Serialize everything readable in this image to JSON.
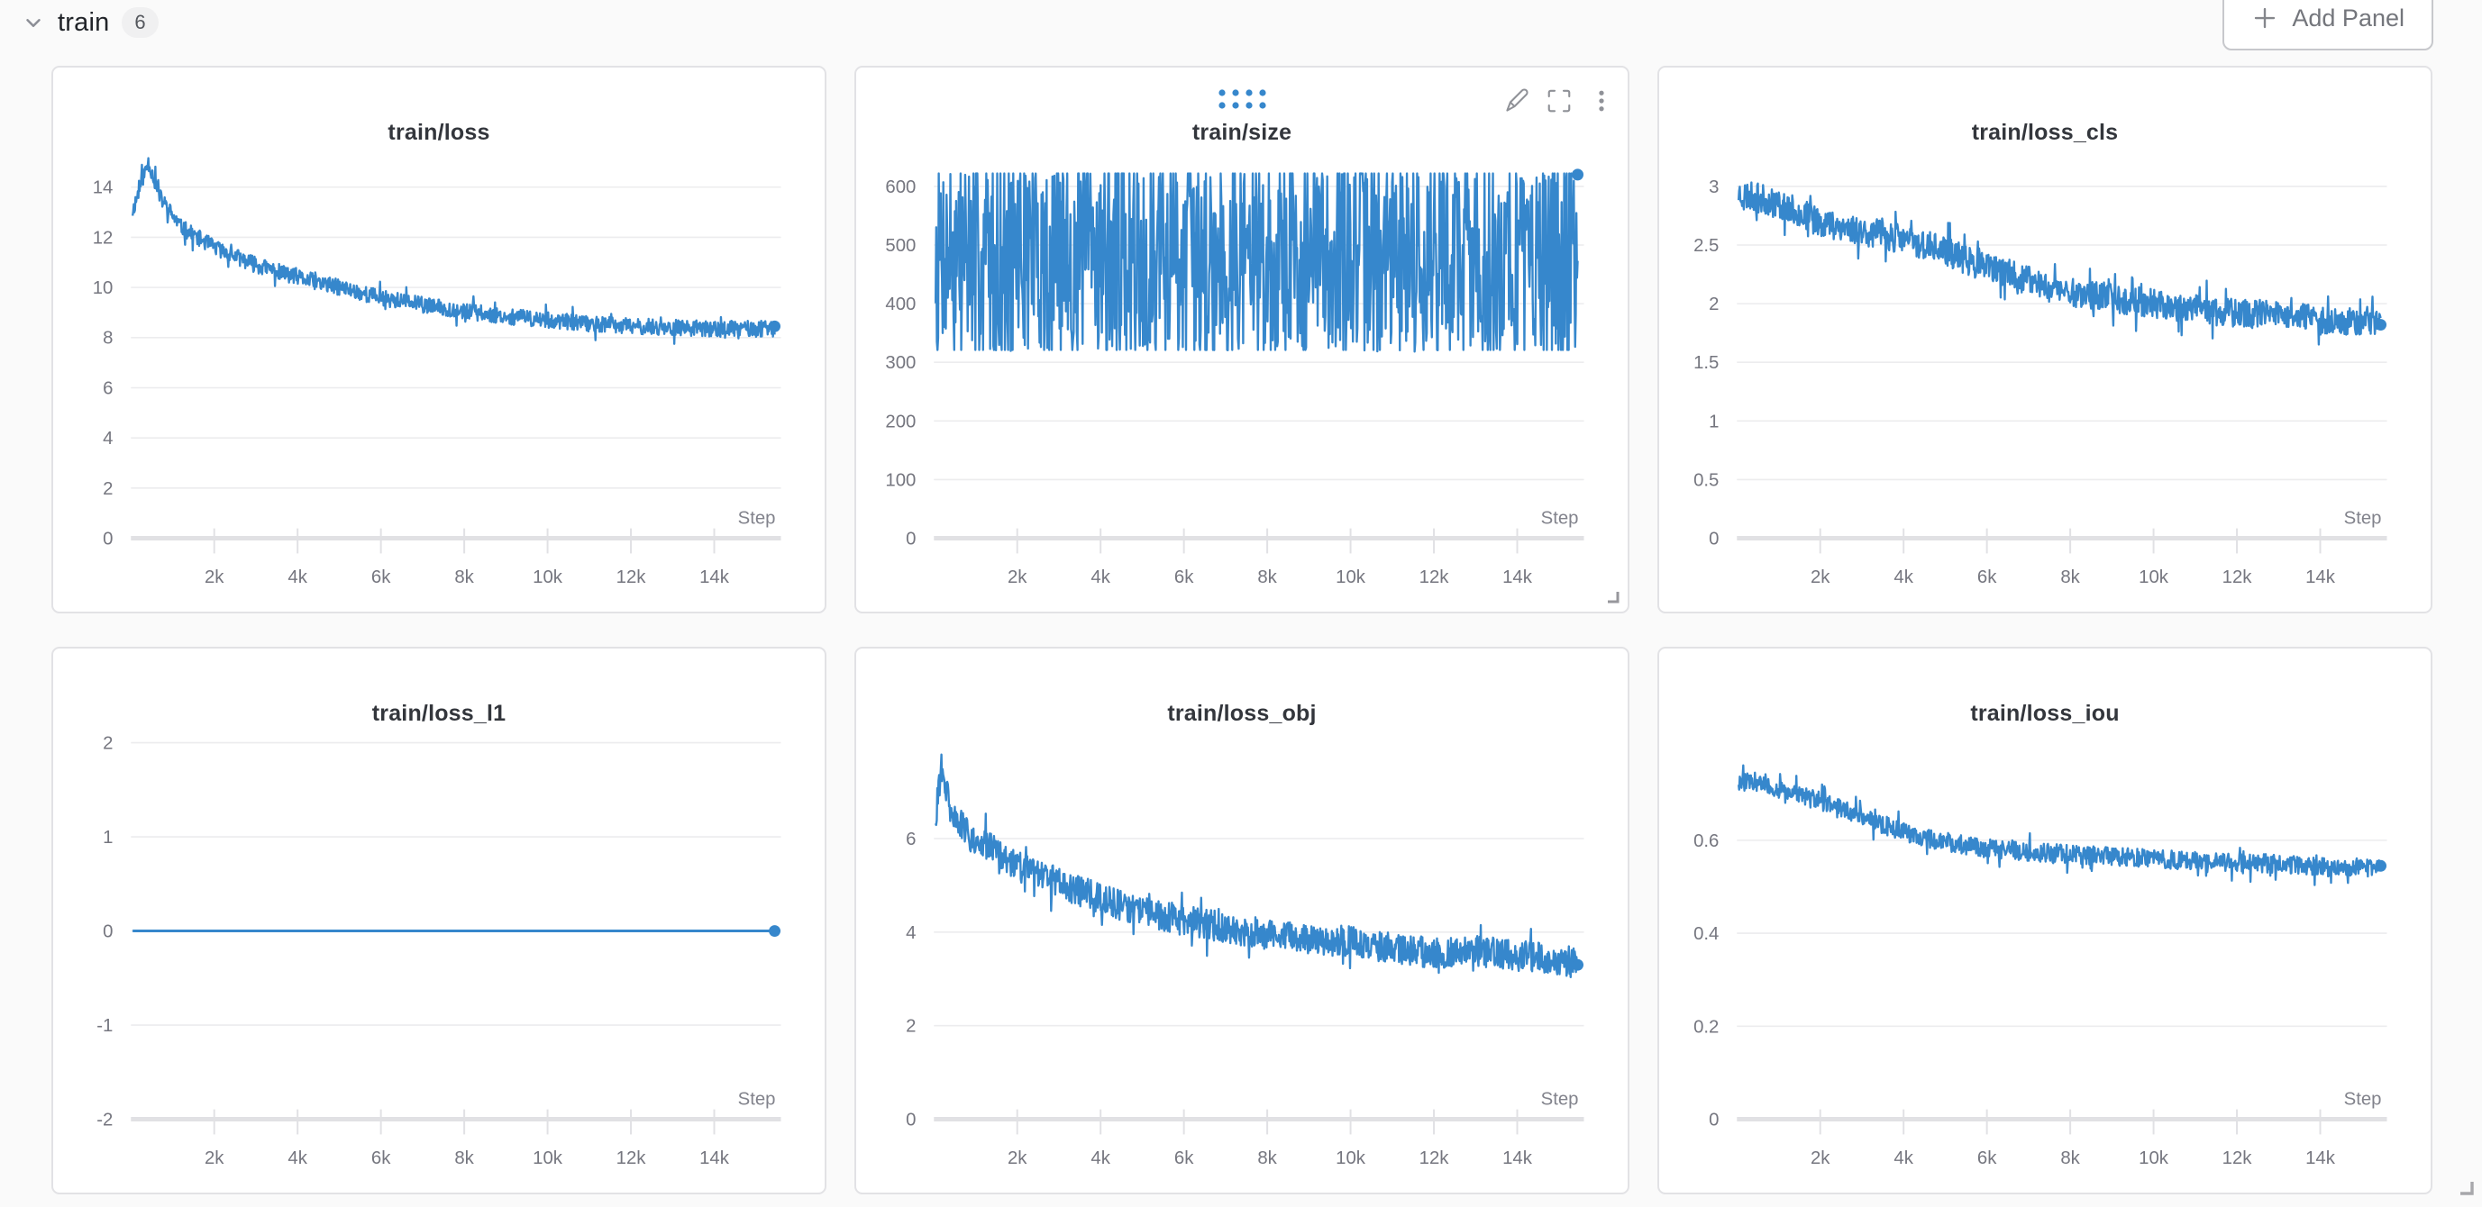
{
  "page": {
    "background": "#fafafa",
    "accent_blue": "#3687cc"
  },
  "header": {
    "section_title": "train",
    "panel_count": "6",
    "add_panel_label": "Add Panel"
  },
  "axis": {
    "step_label": "Step",
    "xlim": [
      0,
      15600
    ],
    "x_ticks": [
      {
        "label": "2k",
        "value": 2000
      },
      {
        "label": "4k",
        "value": 4000
      },
      {
        "label": "6k",
        "value": 6000
      },
      {
        "label": "8k",
        "value": 8000
      },
      {
        "label": "10k",
        "value": 10000
      },
      {
        "label": "12k",
        "value": 12000
      },
      {
        "label": "14k",
        "value": 14000
      }
    ]
  },
  "style": {
    "line_color": "#3687cc",
    "grid_color": "#ececee",
    "axis_color": "#e1e1e4",
    "tick_label_color": "#75767f",
    "step_label_color": "#82838c",
    "title_color": "#33363c",
    "icon_color": "#8f9197"
  },
  "panels": [
    {
      "chart_index": 0,
      "hovered": false
    },
    {
      "chart_index": 1,
      "hovered": true
    },
    {
      "chart_index": 2,
      "hovered": false
    },
    {
      "chart_index": 3,
      "hovered": false
    },
    {
      "chart_index": 4,
      "hovered": false
    },
    {
      "chart_index": 5,
      "hovered": false
    }
  ],
  "chart_data": [
    {
      "key": "train_loss",
      "title": "train/loss",
      "type": "noisy-line",
      "xlabel": "Step",
      "seed": 11,
      "grid": true,
      "legend": "none",
      "ylim": [
        0,
        15.2
      ],
      "yticks": [
        {
          "label": "0",
          "value": 0
        },
        {
          "label": "2",
          "value": 2
        },
        {
          "label": "4",
          "value": 4
        },
        {
          "label": "6",
          "value": 6
        },
        {
          "label": "8",
          "value": 8
        },
        {
          "label": "10",
          "value": 10
        },
        {
          "label": "12",
          "value": 12
        },
        {
          "label": "14",
          "value": 14
        }
      ],
      "trend": [
        [
          0,
          12.8
        ],
        [
          250,
          14.2
        ],
        [
          420,
          15.0
        ],
        [
          700,
          13.6
        ],
        [
          1200,
          12.4
        ],
        [
          2000,
          11.6
        ],
        [
          3000,
          10.9
        ],
        [
          4000,
          10.4
        ],
        [
          5000,
          10.0
        ],
        [
          6000,
          9.6
        ],
        [
          7000,
          9.3
        ],
        [
          8000,
          9.05
        ],
        [
          9000,
          8.85
        ],
        [
          10000,
          8.7
        ],
        [
          11000,
          8.55
        ],
        [
          12000,
          8.45
        ],
        [
          13000,
          8.4
        ],
        [
          14000,
          8.35
        ],
        [
          15450,
          8.35
        ]
      ],
      "noise": 0.32,
      "end_dot": [
        15450,
        8.45
      ]
    },
    {
      "key": "train_size",
      "title": "train/size",
      "type": "random-band",
      "xlabel": "Step",
      "seed": 7,
      "grid": true,
      "legend": "none",
      "ylim": [
        0,
        650
      ],
      "yticks": [
        {
          "label": "0",
          "value": 0
        },
        {
          "label": "100",
          "value": 100
        },
        {
          "label": "200",
          "value": 200
        },
        {
          "label": "300",
          "value": 300
        },
        {
          "label": "400",
          "value": 400
        },
        {
          "label": "500",
          "value": 500
        },
        {
          "label": "600",
          "value": 600
        }
      ],
      "band": [
        318,
        622
      ],
      "end_dot": [
        15450,
        620
      ]
    },
    {
      "key": "train_loss_cls",
      "title": "train/loss_cls",
      "type": "noisy-line",
      "xlabel": "Step",
      "seed": 23,
      "grid": true,
      "legend": "none",
      "ylim": [
        0,
        3.25
      ],
      "yticks": [
        {
          "label": "0",
          "value": 0
        },
        {
          "label": "0.5",
          "value": 0.5
        },
        {
          "label": "1",
          "value": 1
        },
        {
          "label": "1.5",
          "value": 1.5
        },
        {
          "label": "2",
          "value": 2
        },
        {
          "label": "2.5",
          "value": 2.5
        },
        {
          "label": "3",
          "value": 3
        }
      ],
      "trend": [
        [
          0,
          2.95
        ],
        [
          1000,
          2.85
        ],
        [
          2000,
          2.7
        ],
        [
          3000,
          2.62
        ],
        [
          4000,
          2.55
        ],
        [
          5000,
          2.45
        ],
        [
          6000,
          2.3
        ],
        [
          7000,
          2.2
        ],
        [
          8000,
          2.1
        ],
        [
          9000,
          2.05
        ],
        [
          10000,
          2.0
        ],
        [
          11000,
          1.95
        ],
        [
          12000,
          1.92
        ],
        [
          13000,
          1.9
        ],
        [
          14000,
          1.86
        ],
        [
          15450,
          1.85
        ]
      ],
      "noise": 0.125,
      "end_dot": [
        15450,
        1.82
      ]
    },
    {
      "key": "train_loss_l1",
      "title": "train/loss_l1",
      "type": "flat-line",
      "xlabel": "Step",
      "seed": 3,
      "grid": true,
      "legend": "none",
      "ylim": [
        -2,
        2.05
      ],
      "yticks": [
        {
          "label": "-2",
          "value": -2
        },
        {
          "label": "-1",
          "value": -1
        },
        {
          "label": "0",
          "value": 0
        },
        {
          "label": "1",
          "value": 1
        },
        {
          "label": "2",
          "value": 2
        }
      ],
      "trend": [
        [
          40,
          0
        ],
        [
          15450,
          0
        ]
      ],
      "noise": 0,
      "end_dot": [
        15450,
        0
      ]
    },
    {
      "key": "train_loss_obj",
      "title": "train/loss_obj",
      "type": "noisy-line",
      "xlabel": "Step",
      "seed": 31,
      "grid": true,
      "legend": "none",
      "ylim": [
        0,
        8.15
      ],
      "yticks": [
        {
          "label": "0",
          "value": 0
        },
        {
          "label": "2",
          "value": 2
        },
        {
          "label": "4",
          "value": 4
        },
        {
          "label": "6",
          "value": 6
        }
      ],
      "trend": [
        [
          0,
          6.2
        ],
        [
          180,
          7.5
        ],
        [
          400,
          6.6
        ],
        [
          800,
          6.1
        ],
        [
          1500,
          5.7
        ],
        [
          2000,
          5.4
        ],
        [
          3000,
          5.05
        ],
        [
          4000,
          4.7
        ],
        [
          5000,
          4.45
        ],
        [
          6000,
          4.25
        ],
        [
          7000,
          4.1
        ],
        [
          8000,
          3.95
        ],
        [
          9000,
          3.85
        ],
        [
          10000,
          3.8
        ],
        [
          11000,
          3.65
        ],
        [
          12000,
          3.55
        ],
        [
          13000,
          3.6
        ],
        [
          14000,
          3.5
        ],
        [
          15450,
          3.35
        ]
      ],
      "noise": 0.33,
      "end_dot": [
        15450,
        3.3
      ]
    },
    {
      "key": "train_loss_iou",
      "title": "train/loss_iou",
      "type": "noisy-line",
      "xlabel": "Step",
      "seed": 47,
      "grid": true,
      "legend": "none",
      "ylim": [
        0,
        0.82
      ],
      "yticks": [
        {
          "label": "0",
          "value": 0
        },
        {
          "label": "0.2",
          "value": 0.2
        },
        {
          "label": "0.4",
          "value": 0.4
        },
        {
          "label": "0.6",
          "value": 0.6
        }
      ],
      "trend": [
        [
          0,
          0.73
        ],
        [
          800,
          0.715
        ],
        [
          1600,
          0.695
        ],
        [
          2400,
          0.672
        ],
        [
          3200,
          0.645
        ],
        [
          4000,
          0.617
        ],
        [
          4800,
          0.6
        ],
        [
          5600,
          0.588
        ],
        [
          6400,
          0.58
        ],
        [
          7200,
          0.574
        ],
        [
          8000,
          0.57
        ],
        [
          9000,
          0.565
        ],
        [
          10000,
          0.56
        ],
        [
          11000,
          0.556
        ],
        [
          12000,
          0.552
        ],
        [
          13000,
          0.55
        ],
        [
          14000,
          0.542
        ],
        [
          15450,
          0.54
        ]
      ],
      "noise": 0.02,
      "end_dot": [
        15450,
        0.545
      ]
    }
  ]
}
